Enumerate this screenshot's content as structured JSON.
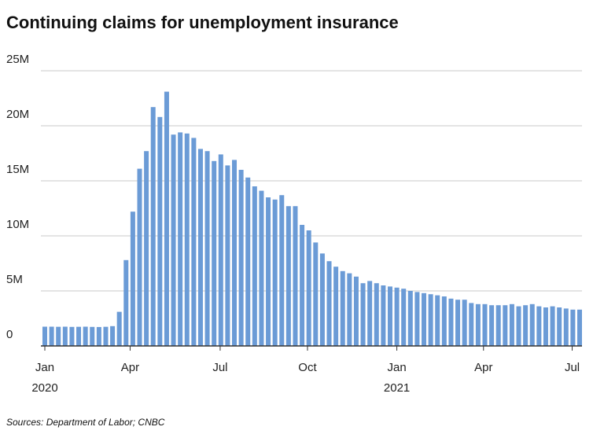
{
  "chart_data": {
    "type": "bar",
    "title": "Continuing claims for unemployment insurance",
    "source": "Sources: Department of Labor; CNBC",
    "color": "#6b9bd6",
    "values": [
      1.75,
      1.75,
      1.74,
      1.75,
      1.73,
      1.74,
      1.75,
      1.73,
      1.72,
      1.74,
      1.8,
      3.1,
      7.8,
      12.2,
      16.1,
      17.7,
      21.7,
      20.8,
      23.1,
      19.2,
      19.4,
      19.3,
      18.9,
      17.9,
      17.7,
      16.8,
      17.4,
      16.4,
      16.9,
      16.0,
      15.3,
      14.5,
      14.1,
      13.5,
      13.3,
      13.7,
      12.7,
      12.7,
      11.0,
      10.5,
      9.4,
      8.4,
      7.7,
      7.2,
      6.8,
      6.6,
      6.3,
      5.7,
      5.9,
      5.7,
      5.5,
      5.4,
      5.3,
      5.2,
      5.0,
      4.9,
      4.8,
      4.7,
      4.6,
      4.5,
      4.3,
      4.2,
      4.2,
      3.9,
      3.8,
      3.8,
      3.7,
      3.7,
      3.7,
      3.8,
      3.6,
      3.7,
      3.8,
      3.6,
      3.5,
      3.6,
      3.5,
      3.4,
      3.3,
      3.3
    ],
    "ylim": [
      0,
      25
    ],
    "yticks": [
      0,
      {
        "value": 5,
        "label": "5M"
      },
      {
        "value": 10,
        "label": "10M"
      },
      {
        "value": 15,
        "label": "15M"
      },
      {
        "value": 20,
        "label": "20M"
      },
      {
        "value": 25,
        "label": "25M"
      }
    ],
    "grid": true,
    "xticks": [
      {
        "value": 0,
        "label": "Jan",
        "sublabel": "2020"
      },
      {
        "value": 12.6,
        "label": "Apr"
      },
      {
        "value": 25.9,
        "label": "Jul"
      },
      {
        "value": 38.8,
        "label": "Oct"
      },
      {
        "value": 52,
        "label": "Jan",
        "sublabel": "2021"
      },
      {
        "value": 64.8,
        "label": "Apr"
      },
      {
        "value": 77.9,
        "label": "Jul"
      }
    ]
  }
}
